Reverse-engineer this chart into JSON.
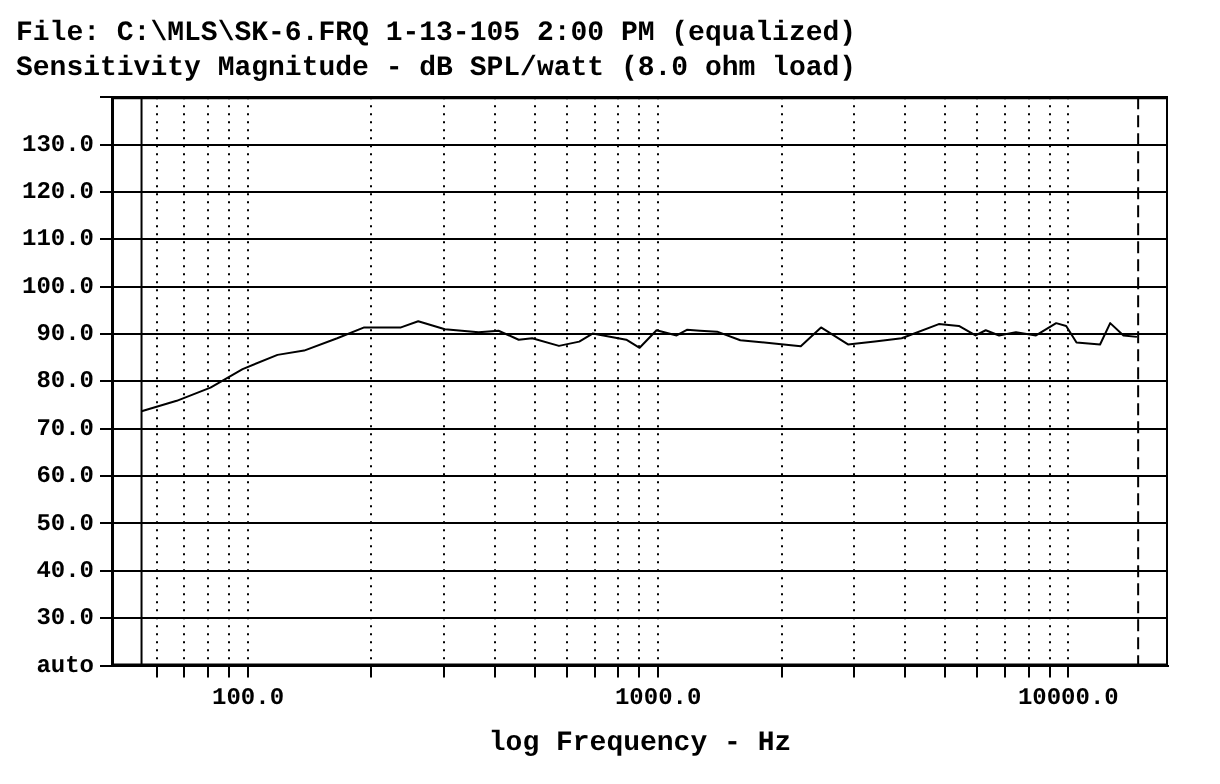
{
  "chart_data": {
    "type": "line",
    "title": "File: C:\\MLS\\SK-6.FRQ 1-13-105 2:00 PM (equalized)",
    "subtitle": "Sensitivity Magnitude - dB SPL/watt (8.0 ohm load)",
    "xlabel": "log Frequency - Hz",
    "log": "x",
    "xlim": [
      46.6,
      17500
    ],
    "ylim": [
      20,
      140
    ],
    "xticks": [
      {
        "value": 60,
        "label": null
      },
      {
        "value": 70,
        "label": null
      },
      {
        "value": 80,
        "label": null
      },
      {
        "value": 90,
        "label": null
      },
      {
        "value": 100,
        "label": "100.0"
      },
      {
        "value": 200,
        "label": null
      },
      {
        "value": 300,
        "label": null
      },
      {
        "value": 400,
        "label": null
      },
      {
        "value": 500,
        "label": null
      },
      {
        "value": 600,
        "label": null
      },
      {
        "value": 700,
        "label": null
      },
      {
        "value": 800,
        "label": null
      },
      {
        "value": 900,
        "label": null
      },
      {
        "value": 1000,
        "label": "1000.0"
      },
      {
        "value": 2000,
        "label": null
      },
      {
        "value": 3000,
        "label": null
      },
      {
        "value": 4000,
        "label": null
      },
      {
        "value": 5000,
        "label": null
      },
      {
        "value": 6000,
        "label": null
      },
      {
        "value": 7000,
        "label": null
      },
      {
        "value": 8000,
        "label": null
      },
      {
        "value": 9000,
        "label": null
      },
      {
        "value": 10000,
        "label": "10000.0"
      }
    ],
    "yticks": [
      {
        "value": 20,
        "label": "auto"
      },
      {
        "value": 30,
        "label": "30.0"
      },
      {
        "value": 40,
        "label": "40.0"
      },
      {
        "value": 50,
        "label": "50.0"
      },
      {
        "value": 60,
        "label": "60.0"
      },
      {
        "value": 70,
        "label": "70.0"
      },
      {
        "value": 80,
        "label": "80.0"
      },
      {
        "value": 90,
        "label": "90.0"
      },
      {
        "value": 100,
        "label": "100.0"
      },
      {
        "value": 110,
        "label": "110.0"
      },
      {
        "value": 120,
        "label": "120.0"
      },
      {
        "value": 130,
        "label": "130.0"
      },
      {
        "value": 140,
        "label": null
      }
    ],
    "grid": true,
    "legend": false,
    "marker": "none",
    "line_style": "solid",
    "x": [
      55,
      67,
      81,
      97,
      118,
      137,
      165,
      192,
      236,
      260,
      302,
      365,
      408,
      457,
      493,
      573,
      642,
      692,
      775,
      836,
      901,
      991,
      1109,
      1175,
      1265,
      1392,
      1586,
      1916,
      2227,
      2495,
      2903,
      3377,
      3925,
      4833,
      5410,
      5940,
      6290,
      6780,
      7450,
      8340,
      9340,
      9880,
      10470,
      11950,
      12650,
      13630,
      14700
    ],
    "series": [
      {
        "color": "#000000",
        "values": [
          73.7,
          75.9,
          78.7,
          82.6,
          85.6,
          86.5,
          89.1,
          91.4,
          91.4,
          92.7,
          91.0,
          90.4,
          90.7,
          88.8,
          89.1,
          87.5,
          88.4,
          90.1,
          89.3,
          88.8,
          87.1,
          90.8,
          89.7,
          90.9,
          90.7,
          90.5,
          88.7,
          88.0,
          87.4,
          91.4,
          87.8,
          88.4,
          89.1,
          92.1,
          91.7,
          89.7,
          90.8,
          89.7,
          90.4,
          89.7,
          92.3,
          91.7,
          88.2,
          87.8,
          92.3,
          89.7,
          89.4
        ]
      }
    ],
    "ref_lines": [
      {
        "axis": "x",
        "value": 55,
        "line_style": "solid",
        "color": "#000000"
      },
      {
        "axis": "x",
        "value": 14800,
        "line_style": "dashed",
        "color": "#000000"
      }
    ]
  }
}
